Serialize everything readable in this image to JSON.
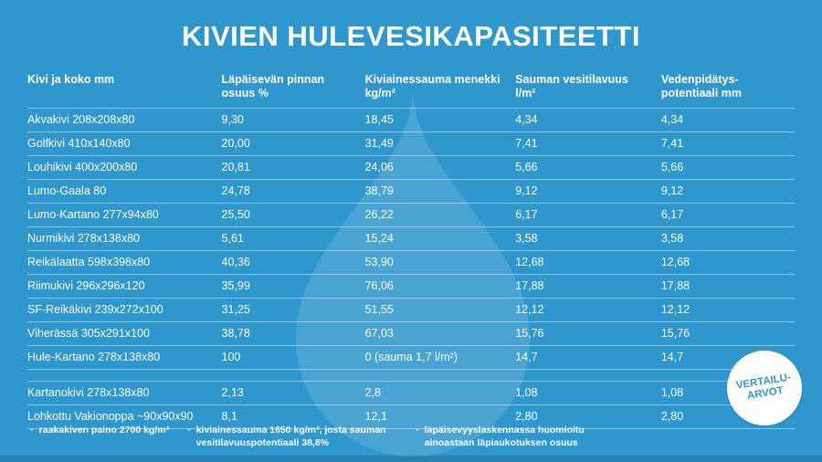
{
  "title": "KIVIEN HULEVESIKAPASITEETTI",
  "chart_data": {
    "type": "table",
    "columns": [
      {
        "lines": [
          "Kivi ja koko mm"
        ]
      },
      {
        "lines": [
          "Läpäisevän pinnan",
          "osuus %"
        ]
      },
      {
        "lines": [
          "Kiviainessauma menekki",
          "kg/m²"
        ]
      },
      {
        "lines": [
          "Sauman vesitilavuus",
          "l/m²"
        ]
      },
      {
        "lines": [
          "Vedenpidätys-",
          "potentiaali mm"
        ]
      }
    ],
    "rows": [
      [
        "Akvakivi 208x208x80",
        "9,30",
        "18,45",
        "4,34",
        "4,34"
      ],
      [
        "Golfkivi 410x140x80",
        "20,00",
        "31,49",
        "7,41",
        "7,41"
      ],
      [
        "Louhikivi 400x200x80",
        "20,81",
        "24,06",
        "5,66",
        "5,66"
      ],
      [
        "Lumo-Gaala 80",
        "24,78",
        "38,79",
        "9,12",
        "9,12"
      ],
      [
        "Lumo-Kartano 277x94x80",
        "25,50",
        "26,22",
        "6,17",
        "6,17"
      ],
      [
        "Nurmikivi 278x138x80",
        "5,61",
        "15,24",
        "3,58",
        "3,58"
      ],
      [
        "Reikälaatta 598x398x80",
        "40,36",
        "53,90",
        "12,68",
        "12,68"
      ],
      [
        "Riimukivi 296x296x120",
        "35,99",
        "76,06",
        "17,88",
        "17,88"
      ],
      [
        "SF-Reikäkivi 239x272x100",
        "31,25",
        "51,55",
        "12,12",
        "12,12"
      ],
      [
        "Viherässä 305x291x100",
        "38,78",
        "67,03",
        "15,76",
        "15,76"
      ],
      [
        "Hule-Kartano 278x138x80",
        "100",
        "0 (sauma 1,7 l/m²)",
        "14,7",
        "14,7"
      ]
    ],
    "comparison_rows": [
      [
        "Kartanokivi 278x138x80",
        "2,13",
        "2,8",
        "1,08",
        "1,08"
      ],
      [
        "Lohkottu Vakionoppa ~90x90x90",
        "8,1",
        "12,1",
        "2,80",
        "2,80"
      ]
    ]
  },
  "badge": {
    "lines": [
      "VERTAILU-",
      "ARVOT"
    ]
  },
  "footnotes": [
    "raakakiven paino 2700 kg/m³",
    "kiviainessauma 1650 kg/m³, josta sauman vesitilavuuspotentiaali 38,8%",
    "läpäisevyyslaskennassa huomioitu ainoastaan läpiaukotuksen osuus"
  ],
  "colors": {
    "background": "#2E97CE",
    "drop": "rgba(255,255,255,0.13)",
    "badge_text": "#2E97CE",
    "separator": "rgba(255,255,255,0.45)"
  }
}
